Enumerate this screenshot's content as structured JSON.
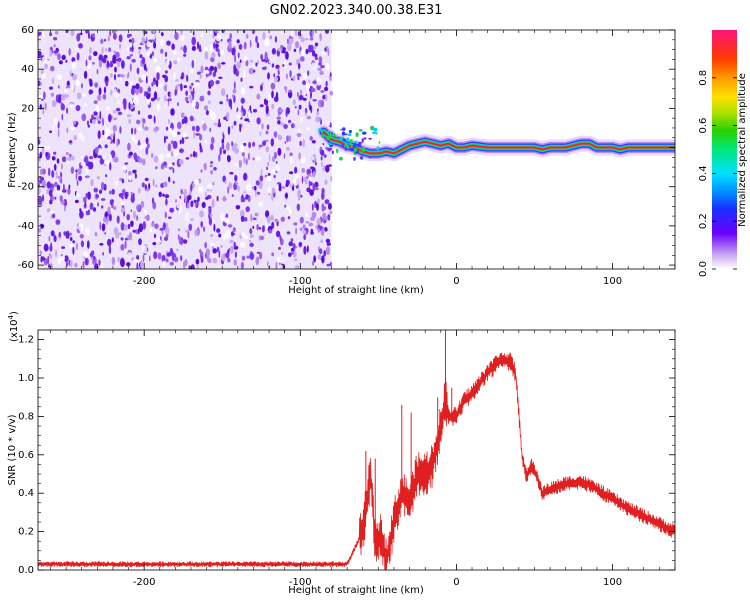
{
  "title": "GN02.2023.340.00.38.E31",
  "chart_data": [
    {
      "type": "heatmap",
      "xlabel": "Height of straight line (km)",
      "ylabel": "Frequency (Hz)",
      "xlim": [
        -268,
        140
      ],
      "ylim": [
        -62,
        60
      ],
      "x_ticks": [
        -200,
        -100,
        0,
        100
      ],
      "x_tick_labels": [
        "-200",
        "-100",
        "0",
        "100"
      ],
      "y_ticks": [
        -60,
        -40,
        -20,
        0,
        20,
        40,
        60
      ],
      "y_tick_labels": [
        "-60",
        "-40",
        "-20",
        "0",
        "20",
        "40",
        "60"
      ],
      "noise_region_x": [
        -268,
        -80
      ],
      "ridge": {
        "x": [
          -85,
          -80,
          -75,
          -70,
          -65,
          -60,
          -55,
          -50,
          -45,
          -40,
          -35,
          -30,
          -25,
          -20,
          -15,
          -10,
          -5,
          0,
          5,
          10,
          20,
          30,
          40,
          50,
          55,
          60,
          70,
          80,
          85,
          90,
          100,
          105,
          110,
          120,
          130,
          140
        ],
        "y": [
          8,
          4,
          3,
          1,
          0,
          -2,
          -3,
          -3,
          -2,
          -3,
          -1,
          1,
          2,
          3,
          2,
          1,
          2,
          0,
          0,
          1,
          0,
          0,
          0,
          0,
          -1,
          0,
          0,
          2,
          2,
          0,
          0,
          -1,
          0,
          0,
          0,
          0
        ]
      },
      "colorbar": {
        "label": "Normalized spectral amplitude",
        "range": [
          0,
          1
        ],
        "ticks": [
          0,
          0.2,
          0.4,
          0.6,
          0.8
        ],
        "tick_labels": [
          "0.0",
          "0.2",
          "0.4",
          "0.6",
          "0.8"
        ]
      },
      "grid": false
    },
    {
      "type": "line",
      "xlabel": "Height of straight line (km)",
      "ylabel": "SNR (10 * v/v)",
      "y_exponent_label": "(x10",
      "y_exponent_power": "4",
      "y_exponent_close": ")",
      "xlim": [
        -268,
        140
      ],
      "ylim": [
        0,
        1.25
      ],
      "x_ticks": [
        -200,
        -100,
        0,
        100
      ],
      "x_tick_labels": [
        "-200",
        "-100",
        "0",
        "100"
      ],
      "y_ticks": [
        0,
        0.2,
        0.4,
        0.6,
        0.8,
        1.0,
        1.2
      ],
      "y_tick_labels": [
        "0.0",
        "0.2",
        "0.4",
        "0.6",
        "0.8",
        "1.0",
        "1.2"
      ],
      "color": "#e02020",
      "series": [
        {
          "x": [
            -268,
            -200,
            -150,
            -100,
            -70,
            -60,
            -55,
            -52,
            -48,
            -45,
            -40,
            -35,
            -30,
            -25,
            -20,
            -15,
            -10,
            -7,
            -5,
            0,
            5,
            10,
            15,
            20,
            25,
            30,
            35,
            38,
            42,
            45,
            48,
            52,
            55,
            60,
            70,
            80,
            90,
            100,
            110,
            120,
            130,
            140
          ],
          "y": [
            0.03,
            0.03,
            0.03,
            0.03,
            0.03,
            0.2,
            0.5,
            0.15,
            0.18,
            0.05,
            0.25,
            0.4,
            0.35,
            0.5,
            0.5,
            0.55,
            0.75,
            0.9,
            0.8,
            0.8,
            0.88,
            0.92,
            0.97,
            1.03,
            1.07,
            1.1,
            1.08,
            1.02,
            0.6,
            0.48,
            0.55,
            0.48,
            0.4,
            0.42,
            0.45,
            0.46,
            0.42,
            0.37,
            0.32,
            0.28,
            0.24,
            0.2
          ]
        }
      ],
      "grid": false
    }
  ]
}
